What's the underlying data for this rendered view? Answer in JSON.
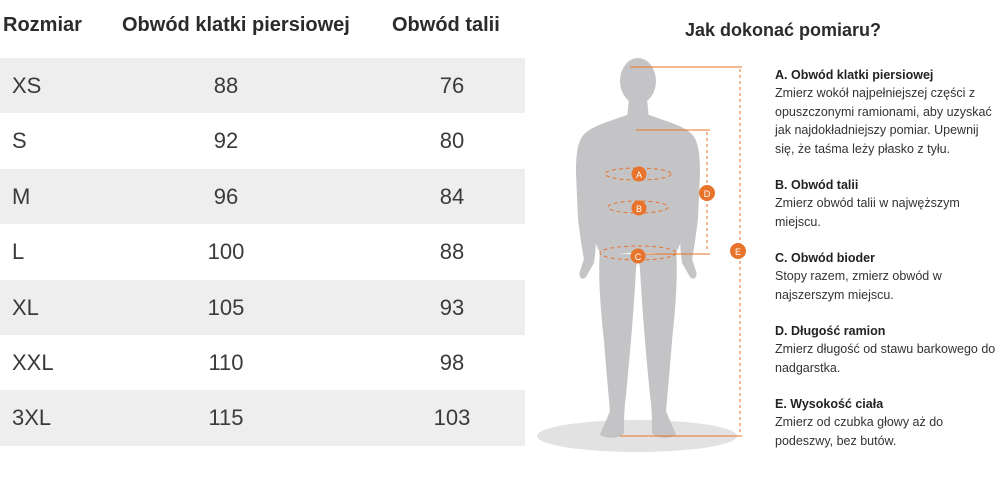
{
  "table": {
    "headers": {
      "size": "Rozmiar",
      "chest": "Obwód klatki piersiowej",
      "waist": "Obwód talii"
    },
    "rows": [
      {
        "size": "XS",
        "chest": "88",
        "waist": "76"
      },
      {
        "size": "S",
        "chest": "92",
        "waist": "80"
      },
      {
        "size": "M",
        "chest": "96",
        "waist": "84"
      },
      {
        "size": "L",
        "chest": "100",
        "waist": "88"
      },
      {
        "size": "XL",
        "chest": "105",
        "waist": "93"
      },
      {
        "size": "XXL",
        "chest": "110",
        "waist": "98"
      },
      {
        "size": "3XL",
        "chest": "115",
        "waist": "103"
      }
    ]
  },
  "guide": {
    "title": "Jak dokonać pomiaru?",
    "markers": {
      "a": "A",
      "b": "B",
      "c": "C",
      "d": "D",
      "e": "E"
    },
    "items": [
      {
        "title": "A. Obwód klatki piersiowej",
        "text": "Zmierz wokół najpełniejszej części z opuszczonymi ramionami, aby uzyskać jak najdokładniejszy pomiar. Upewnij się, że taśma leży płasko z tyłu."
      },
      {
        "title": "B. Obwód talii",
        "text": "Zmierz obwód talii w najwęższym miejscu."
      },
      {
        "title": "C. Obwód bioder",
        "text": "Stopy razem, zmierz obwód w najszerszym miejscu."
      },
      {
        "title": "D. Długość ramion",
        "text": "Zmierz długość od stawu barkowego do nadgarstka."
      },
      {
        "title": "E. Wysokość ciała",
        "text": "Zmierz od czubka głowy aż do podeszwy, bez butów."
      }
    ]
  },
  "colors": {
    "accent": "#e8732a",
    "body": "#c4c4c6",
    "shadow": "#e2e2e2",
    "row_shade": "#eeeeee"
  }
}
